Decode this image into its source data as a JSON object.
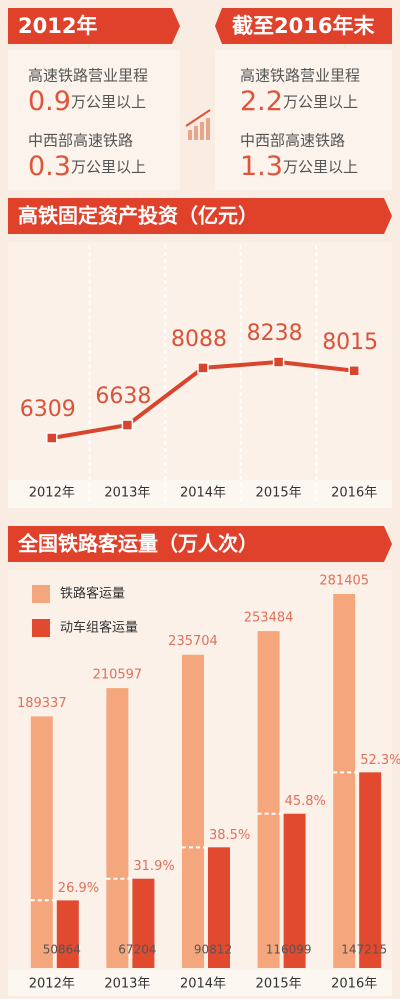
{
  "panels": [
    {
      "tag": "2012年",
      "items": [
        {
          "label": "高速铁路营业里程",
          "value": 0.9,
          "unit": "万公里以上"
        },
        {
          "label": "中西部高速铁路",
          "value": 0.3,
          "unit": "万公里以上"
        }
      ]
    },
    {
      "tag": "截至2016年末",
      "items": [
        {
          "label": "高速铁路营业里程",
          "value": 2.2,
          "unit": "万公里以上"
        },
        {
          "label": "中西部高速铁路",
          "value": 1.3,
          "unit": "万公里以上"
        }
      ]
    }
  ],
  "chart_data": [
    {
      "type": "line",
      "title": "高铁固定资产投资（亿元）",
      "categories": [
        "2012年",
        "2013年",
        "2014年",
        "2015年",
        "2016年"
      ],
      "values": [
        6309,
        6638,
        8088,
        8238,
        8015
      ],
      "color": "#d9442c"
    },
    {
      "type": "bar",
      "title": "全国铁路客运量（万人次）",
      "categories": [
        "2012年",
        "2013年",
        "2014年",
        "2015年",
        "2016年"
      ],
      "series": [
        {
          "name": "铁路客运量",
          "color": "#f4a77d",
          "values": [
            189337,
            210597,
            235704,
            253484,
            281405
          ]
        },
        {
          "name": "动车组客运量",
          "color": "#e24a2f",
          "values": [
            50864,
            67204,
            90812,
            116099,
            147215
          ]
        }
      ],
      "shares": [
        26.9,
        31.9,
        38.5,
        45.8,
        52.3
      ],
      "share_labels": [
        "26.9%",
        "31.9%",
        "38.5%",
        "45.8%",
        "52.3%"
      ]
    }
  ]
}
